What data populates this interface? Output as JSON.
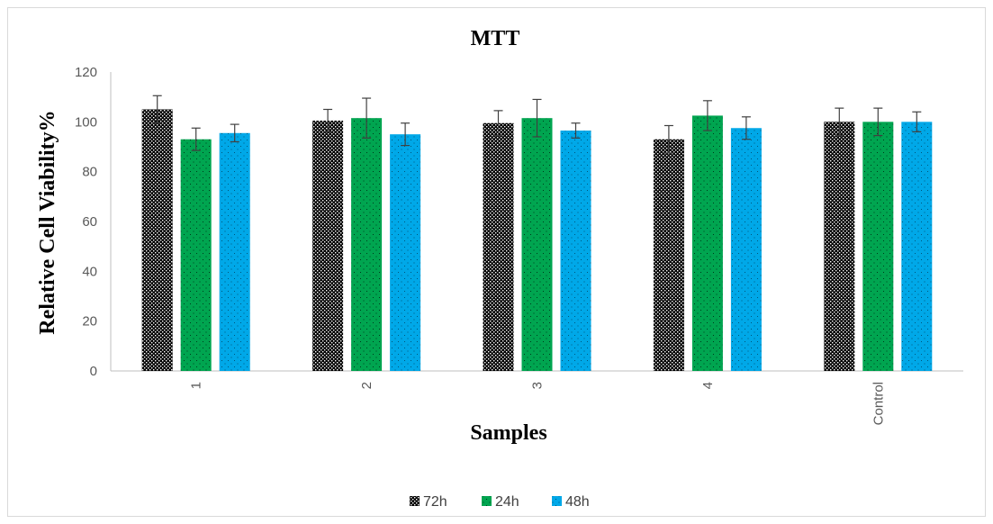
{
  "chart_data": {
    "type": "bar",
    "title": "MTT",
    "xlabel": "Samples",
    "ylabel": "Relative Cell Viability%",
    "categories": [
      "1",
      "2",
      "3",
      "4",
      "Control"
    ],
    "ylim": [
      0,
      120
    ],
    "yticks": [
      0,
      20,
      40,
      60,
      80,
      100,
      120
    ],
    "series": [
      {
        "name": "72h",
        "color": "#000000",
        "pattern": "checker",
        "values": [
          105,
          100.5,
          99.5,
          93,
          100
        ],
        "errors": [
          5.5,
          4.5,
          5,
          5.5,
          5.5
        ]
      },
      {
        "name": "24h",
        "color": "#00a550",
        "pattern": "dots",
        "values": [
          93,
          101.5,
          101.5,
          102.5,
          100
        ],
        "errors": [
          4.5,
          8,
          7.5,
          6,
          5.5
        ]
      },
      {
        "name": "48h",
        "color": "#00a8e8",
        "pattern": "dots",
        "values": [
          95.5,
          95,
          96.5,
          97.5,
          100
        ],
        "errors": [
          3.5,
          4.5,
          3,
          4.5,
          4
        ]
      }
    ],
    "legend": "bottom-center",
    "grid": false
  }
}
